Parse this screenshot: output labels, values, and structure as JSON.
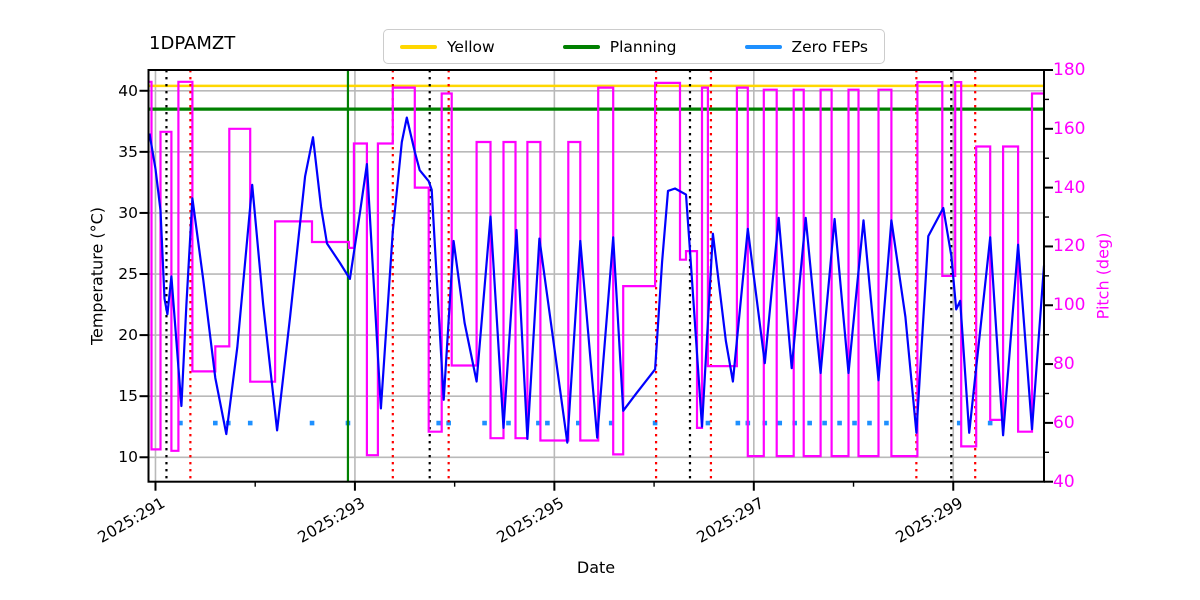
{
  "chart_data": {
    "type": "line",
    "title": "1DPAMZT",
    "xlabel": "Date",
    "ylabel_left": "Temperature (°C)",
    "ylabel_right": "Pitch (deg)",
    "xlim": [
      290.93,
      299.91
    ],
    "ylim_left": [
      8.0,
      41.7
    ],
    "ylim_right": [
      40,
      180
    ],
    "xticks_major": [
      {
        "value": 291,
        "label": "2025:291"
      },
      {
        "value": 293,
        "label": "2025:293"
      },
      {
        "value": 295,
        "label": "2025:295"
      },
      {
        "value": 297,
        "label": "2025:297"
      },
      {
        "value": 299,
        "label": "2025:299"
      }
    ],
    "xticks_minor": [
      292,
      294,
      296,
      298
    ],
    "yticks_left": [
      10,
      15,
      20,
      25,
      30,
      35,
      40
    ],
    "yticks_right_major": [
      40,
      60,
      80,
      100,
      120,
      140,
      160,
      180
    ],
    "yticks_right_minor": [
      50,
      70,
      90,
      110,
      130,
      150,
      170
    ],
    "grid": {
      "show": true,
      "color": "#b9b9b9"
    },
    "legend": {
      "position": "top-center",
      "items": [
        {
          "label": "Yellow",
          "color": "#ffd700"
        },
        {
          "label": "Planning",
          "color": "#008000"
        },
        {
          "label": "Zero FEPs",
          "color": "#1e90ff"
        }
      ]
    },
    "limit_lines": {
      "yellow": {
        "value": 40.4,
        "color": "#ffd700",
        "axis": "left"
      },
      "planning": {
        "value": 38.5,
        "color": "#008000",
        "axis": "left"
      }
    },
    "vlines": {
      "green_solid": [
        292.93
      ],
      "black_dotted": [
        291.11,
        293.75,
        296.36,
        298.98
      ],
      "red_dotted": [
        291.35,
        293.38,
        293.94,
        296.02,
        296.57,
        298.63,
        299.22
      ]
    },
    "zero_feps": {
      "temp": 12.8,
      "color": "#1e90ff",
      "dates": [
        291.25,
        291.6,
        291.73,
        291.95,
        292.57,
        292.93,
        293.84,
        293.94,
        294.3,
        294.54,
        294.84,
        294.93,
        295.24,
        295.57,
        296.01,
        296.54,
        296.84,
        296.94,
        297.11,
        297.26,
        297.41,
        297.56,
        297.71,
        297.86,
        298.01,
        298.16,
        298.33,
        299.06,
        299.37
      ]
    },
    "series": [
      {
        "name": "1DPAMZT temperature",
        "axis": "left",
        "color": "#0000ff",
        "points": [
          [
            290.94,
            36.5
          ],
          [
            291.0,
            33.6
          ],
          [
            291.05,
            30.2
          ],
          [
            291.09,
            23.0
          ],
          [
            291.12,
            21.7
          ],
          [
            291.16,
            24.8
          ],
          [
            291.21,
            19.5
          ],
          [
            291.26,
            14.2
          ],
          [
            291.31,
            22.5
          ],
          [
            291.37,
            31.2
          ],
          [
            291.48,
            24.5
          ],
          [
            291.6,
            16.5
          ],
          [
            291.71,
            11.9
          ],
          [
            291.82,
            19.0
          ],
          [
            291.97,
            32.3
          ],
          [
            292.08,
            22.5
          ],
          [
            292.22,
            12.2
          ],
          [
            292.35,
            21.5
          ],
          [
            292.5,
            33.0
          ],
          [
            292.58,
            36.2
          ],
          [
            292.66,
            30.5
          ],
          [
            292.72,
            27.5
          ],
          [
            292.85,
            25.9
          ],
          [
            292.95,
            24.6
          ],
          [
            293.05,
            30.0
          ],
          [
            293.12,
            34.0
          ],
          [
            293.26,
            14.0
          ],
          [
            293.38,
            28.5
          ],
          [
            293.47,
            35.8
          ],
          [
            293.52,
            37.8
          ],
          [
            293.6,
            35.0
          ],
          [
            293.65,
            33.5
          ],
          [
            293.74,
            32.6
          ],
          [
            293.77,
            31.9
          ],
          [
            293.89,
            14.7
          ],
          [
            293.99,
            27.7
          ],
          [
            294.1,
            21.0
          ],
          [
            294.22,
            16.2
          ],
          [
            294.36,
            29.7
          ],
          [
            294.49,
            12.4
          ],
          [
            294.62,
            28.6
          ],
          [
            294.73,
            11.5
          ],
          [
            294.85,
            27.9
          ],
          [
            295.13,
            11.2
          ],
          [
            295.26,
            27.7
          ],
          [
            295.43,
            11.6
          ],
          [
            295.59,
            28.0
          ],
          [
            295.69,
            13.8
          ],
          [
            295.82,
            15.2
          ],
          [
            296.01,
            17.2
          ],
          [
            296.08,
            26.0
          ],
          [
            296.14,
            31.8
          ],
          [
            296.21,
            32.0
          ],
          [
            296.32,
            31.5
          ],
          [
            296.36,
            26.9
          ],
          [
            296.48,
            12.5
          ],
          [
            296.59,
            28.3
          ],
          [
            296.72,
            19.5
          ],
          [
            296.79,
            16.2
          ],
          [
            296.94,
            28.7
          ],
          [
            297.11,
            17.7
          ],
          [
            297.25,
            29.6
          ],
          [
            297.38,
            17.3
          ],
          [
            297.52,
            29.6
          ],
          [
            297.67,
            16.9
          ],
          [
            297.81,
            29.5
          ],
          [
            297.95,
            16.9
          ],
          [
            298.1,
            29.4
          ],
          [
            298.25,
            16.3
          ],
          [
            298.38,
            29.4
          ],
          [
            298.52,
            21.5
          ],
          [
            298.63,
            12.0
          ],
          [
            298.75,
            28.1
          ],
          [
            298.9,
            30.4
          ],
          [
            298.98,
            26.5
          ],
          [
            299.03,
            22.1
          ],
          [
            299.07,
            22.8
          ],
          [
            299.16,
            12.0
          ],
          [
            299.37,
            28.0
          ],
          [
            299.5,
            11.8
          ],
          [
            299.65,
            27.4
          ],
          [
            299.79,
            12.3
          ],
          [
            299.91,
            25.7
          ]
        ]
      },
      {
        "name": "Pitch",
        "axis": "right",
        "color": "#ff00ff",
        "steps": [
          [
            290.94,
            290.96,
            176
          ],
          [
            290.96,
            291.05,
            51
          ],
          [
            291.05,
            291.16,
            159
          ],
          [
            291.16,
            291.23,
            50.5
          ],
          [
            291.23,
            291.37,
            176
          ],
          [
            291.37,
            291.6,
            77.5
          ],
          [
            291.6,
            291.74,
            86
          ],
          [
            291.74,
            291.95,
            160
          ],
          [
            291.95,
            292.2,
            74
          ],
          [
            292.2,
            292.57,
            128.5
          ],
          [
            292.57,
            292.94,
            121.5
          ],
          [
            292.94,
            292.99,
            119.5
          ],
          [
            292.99,
            293.12,
            155
          ],
          [
            293.12,
            293.23,
            49
          ],
          [
            293.23,
            293.38,
            155
          ],
          [
            293.38,
            293.6,
            174
          ],
          [
            293.6,
            293.74,
            140
          ],
          [
            293.74,
            293.87,
            57
          ],
          [
            293.87,
            293.97,
            172
          ],
          [
            293.97,
            294.22,
            79.5
          ],
          [
            294.22,
            294.36,
            155.5
          ],
          [
            294.36,
            294.49,
            54.8
          ],
          [
            294.49,
            294.61,
            155.5
          ],
          [
            294.61,
            294.73,
            54.8
          ],
          [
            294.73,
            294.86,
            155.5
          ],
          [
            294.86,
            295.14,
            54
          ],
          [
            295.14,
            295.26,
            155.5
          ],
          [
            295.26,
            295.44,
            54
          ],
          [
            295.44,
            295.59,
            174
          ],
          [
            295.59,
            295.69,
            49.3
          ],
          [
            295.69,
            296.01,
            106.5
          ],
          [
            296.01,
            296.26,
            175.6
          ],
          [
            296.26,
            296.32,
            115.5
          ],
          [
            296.32,
            296.43,
            118.4
          ],
          [
            296.43,
            296.48,
            58.3
          ],
          [
            296.48,
            296.54,
            174
          ],
          [
            296.54,
            296.83,
            79.3
          ],
          [
            296.83,
            296.94,
            174
          ],
          [
            296.94,
            297.1,
            48.7
          ],
          [
            297.1,
            297.23,
            173.3
          ],
          [
            297.23,
            297.4,
            48.7
          ],
          [
            297.4,
            297.5,
            173.3
          ],
          [
            297.5,
            297.67,
            48.7
          ],
          [
            297.67,
            297.78,
            173.3
          ],
          [
            297.78,
            297.95,
            48.7
          ],
          [
            297.95,
            298.05,
            173.3
          ],
          [
            298.05,
            298.25,
            48.7
          ],
          [
            298.25,
            298.38,
            173.3
          ],
          [
            298.38,
            298.64,
            48.7
          ],
          [
            298.64,
            298.89,
            175.9
          ],
          [
            298.89,
            299.02,
            110
          ],
          [
            299.02,
            299.08,
            175.9
          ],
          [
            299.08,
            299.23,
            52
          ],
          [
            299.23,
            299.37,
            154
          ],
          [
            299.37,
            299.5,
            61
          ],
          [
            299.5,
            299.65,
            154
          ],
          [
            299.65,
            299.79,
            57
          ],
          [
            299.79,
            299.91,
            172
          ]
        ]
      }
    ]
  }
}
